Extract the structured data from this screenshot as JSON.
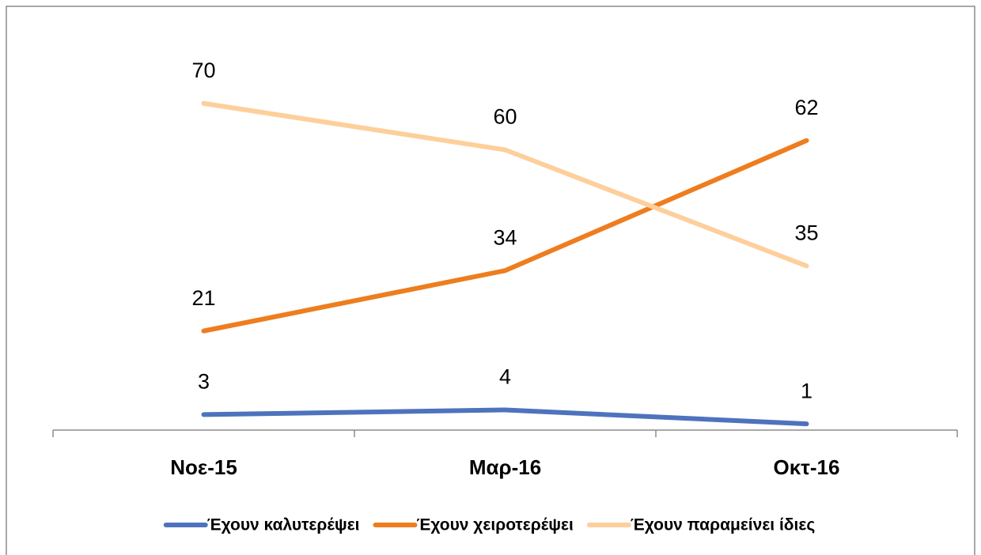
{
  "chart_data": {
    "type": "line",
    "categories": [
      "Νοε-15",
      "Μαρ-16",
      "Οκτ-16"
    ],
    "series": [
      {
        "name": "Έχουν καλυτερέψει",
        "color": "#4e73bd",
        "values": [
          3,
          4,
          1
        ]
      },
      {
        "name": "Έχουν χειροτερέψει",
        "color": "#ee7d1f",
        "values": [
          21,
          34,
          62
        ]
      },
      {
        "name": "Έχουν παραμείνει ίδιες",
        "color": "#fdcf9b",
        "values": [
          70,
          60,
          35
        ]
      }
    ],
    "ylim": [
      0,
      80
    ],
    "legend": "bottom"
  }
}
